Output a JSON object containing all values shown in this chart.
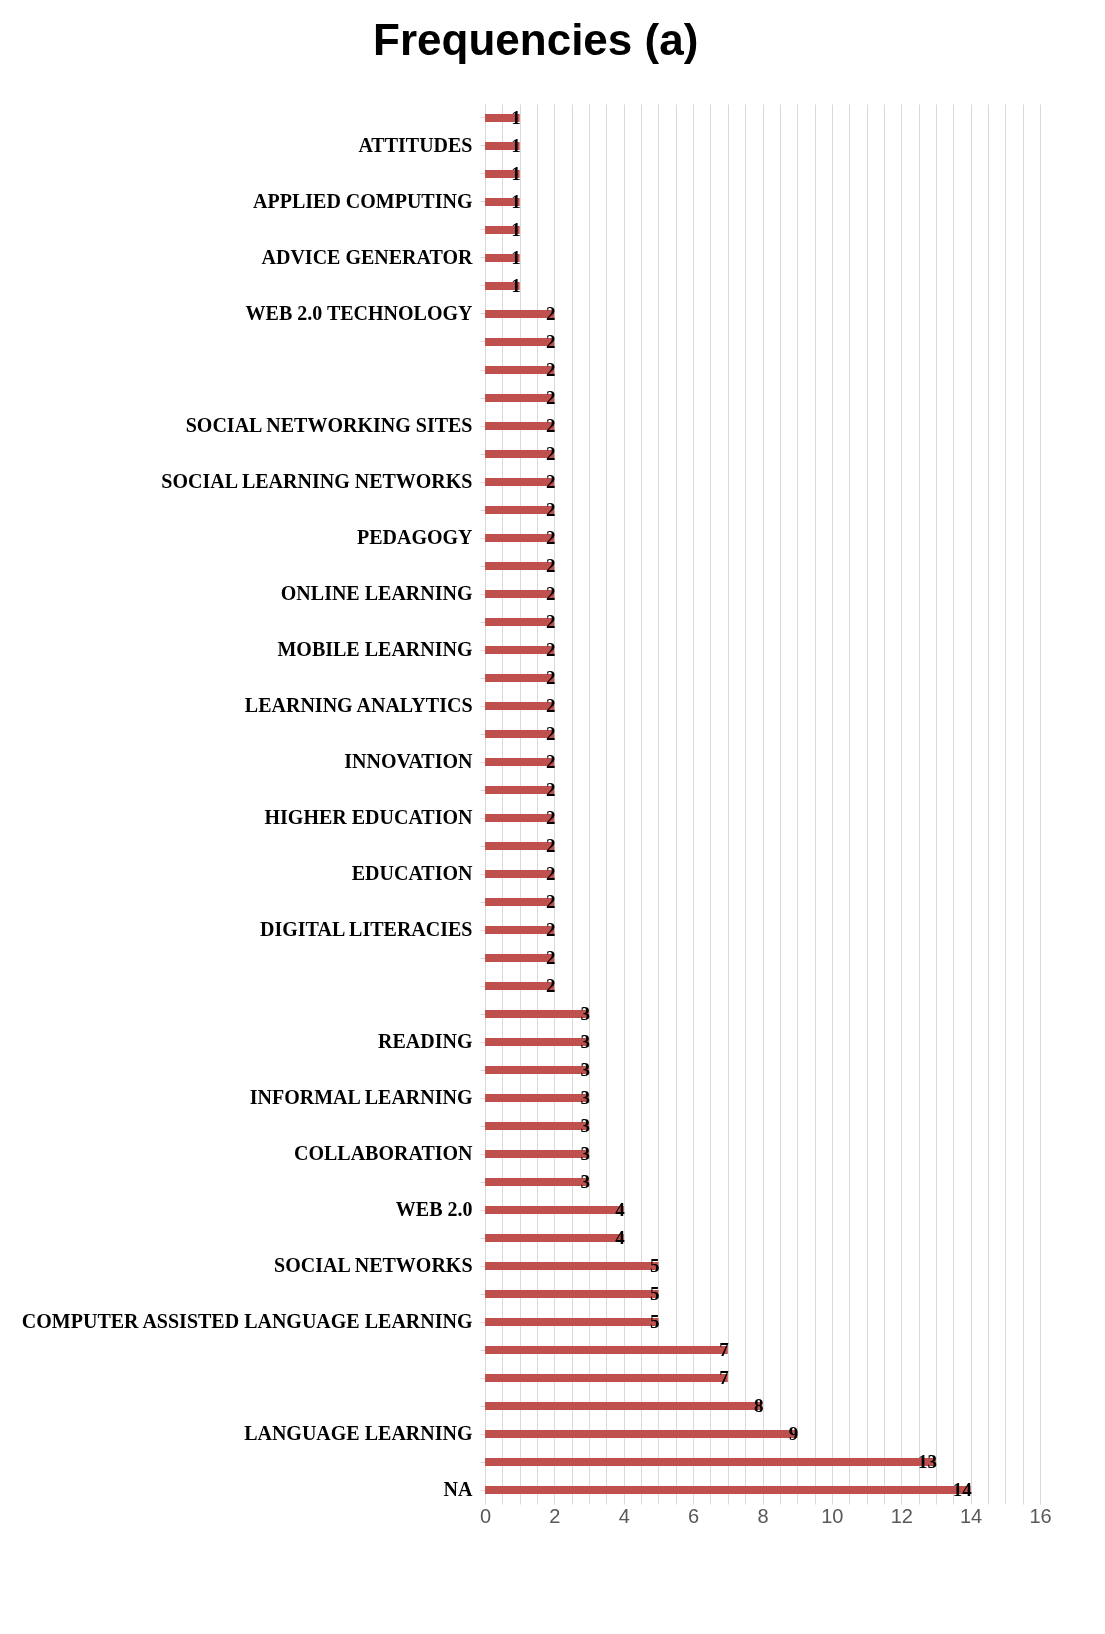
{
  "chart_data": {
    "type": "bar",
    "orientation": "horizontal",
    "title": "Frequencies (a)",
    "categories": [
      null,
      "ATTITUDES",
      null,
      "APPLIED COMPUTING",
      null,
      "ADVICE GENERATOR",
      null,
      "WEB 2.0 TECHNOLOGY",
      null,
      null,
      null,
      "SOCIAL NETWORKING SITES",
      null,
      "SOCIAL LEARNING NETWORKS",
      null,
      "PEDAGOGY",
      null,
      "ONLINE LEARNING",
      null,
      "MOBILE LEARNING",
      null,
      "LEARNING ANALYTICS",
      null,
      "INNOVATION",
      null,
      "HIGHER EDUCATION",
      null,
      "EDUCATION",
      null,
      "DIGITAL LITERACIES",
      null,
      null,
      null,
      "READING",
      null,
      "INFORMAL LEARNING",
      null,
      "COLLABORATION",
      null,
      "WEB 2.0",
      null,
      "SOCIAL NETWORKS",
      null,
      "COMPUTER ASSISTED LANGUAGE LEARNING",
      null,
      null,
      null,
      "LANGUAGE LEARNING",
      null,
      "NA"
    ],
    "values": [
      1,
      1,
      1,
      1,
      1,
      1,
      1,
      2,
      2,
      2,
      2,
      2,
      2,
      2,
      2,
      2,
      2,
      2,
      2,
      2,
      2,
      2,
      2,
      2,
      2,
      2,
      2,
      2,
      2,
      2,
      2,
      2,
      3,
      3,
      3,
      3,
      3,
      3,
      3,
      4,
      4,
      5,
      5,
      5,
      7,
      7,
      8,
      9,
      13,
      14
    ],
    "color": "#c0504d",
    "data_labels": true,
    "grid": "x",
    "xlim": [
      0,
      16
    ],
    "xticks": [
      0,
      {
        "value": 0.5,
        "label": null
      },
      {
        "value": 1,
        "label": null
      },
      {
        "value": 1.5,
        "label": null
      },
      2,
      {
        "value": 2.5,
        "label": null
      },
      {
        "value": 3,
        "label": null
      },
      {
        "value": 3.5,
        "label": null
      },
      4,
      {
        "value": 4.5,
        "label": null
      },
      {
        "value": 5,
        "label": null
      },
      {
        "value": 5.5,
        "label": null
      },
      6,
      {
        "value": 6.5,
        "label": null
      },
      {
        "value": 7,
        "label": null
      },
      {
        "value": 7.5,
        "label": null
      },
      8,
      {
        "value": 8.5,
        "label": null
      },
      {
        "value": 9,
        "label": null
      },
      {
        "value": 9.5,
        "label": null
      },
      10,
      {
        "value": 10.5,
        "label": null
      },
      {
        "value": 11,
        "label": null
      },
      {
        "value": 11.5,
        "label": null
      },
      12,
      {
        "value": 12.5,
        "label": null
      },
      {
        "value": 13,
        "label": null
      },
      {
        "value": 13.5,
        "label": null
      },
      14,
      {
        "value": 14.5,
        "label": null
      },
      {
        "value": 15,
        "label": null
      },
      {
        "value": 15.5,
        "label": null
      },
      16
    ]
  }
}
